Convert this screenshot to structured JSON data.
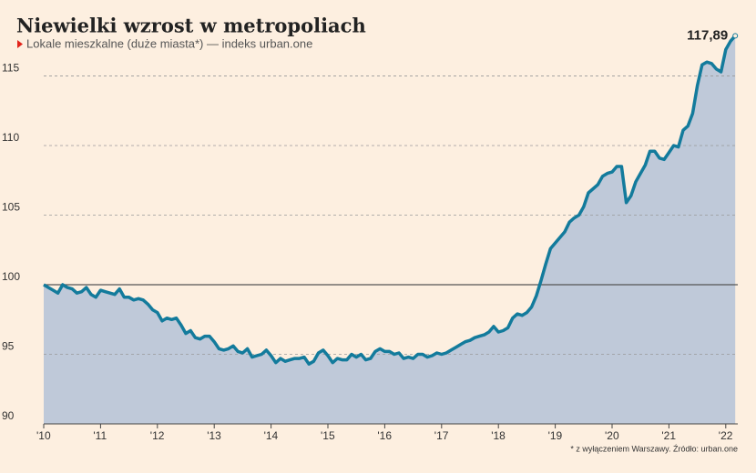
{
  "chart_data": {
    "type": "area",
    "title": "Niewielki wzrost w metropoliach",
    "subtitle": "Lokale mieszkalne (duże miasta*) — indeks urban.one",
    "note": "* z wyłączeniem Warszawy. Źródło: urban.one",
    "categories": [
      "'10",
      null,
      null,
      null,
      null,
      null,
      null,
      null,
      null,
      null,
      null,
      null,
      "'11",
      null,
      null,
      null,
      null,
      null,
      null,
      null,
      null,
      null,
      null,
      null,
      "'12",
      null,
      null,
      null,
      null,
      null,
      null,
      null,
      null,
      null,
      null,
      null,
      "'13",
      null,
      null,
      null,
      null,
      null,
      null,
      null,
      null,
      null,
      null,
      null,
      "'14",
      null,
      null,
      null,
      null,
      null,
      null,
      null,
      null,
      null,
      null,
      null,
      "'15",
      null,
      null,
      null,
      null,
      null,
      null,
      null,
      null,
      null,
      null,
      null,
      "'16",
      null,
      null,
      null,
      null,
      null,
      null,
      null,
      null,
      null,
      null,
      null,
      "'17",
      null,
      null,
      null,
      null,
      null,
      null,
      null,
      null,
      null,
      null,
      null,
      "'18",
      null,
      null,
      null,
      null,
      null,
      null,
      null,
      null,
      null,
      null,
      null,
      "'19",
      null,
      null,
      null,
      null,
      null,
      null,
      null,
      null,
      null,
      null,
      null,
      "'20",
      null,
      null,
      null,
      null,
      null,
      null,
      null,
      null,
      null,
      null,
      null,
      "'21",
      null,
      null,
      null,
      null,
      null,
      null,
      null,
      null,
      null,
      null,
      null,
      "'22",
      null,
      null
    ],
    "values": [
      100,
      99.8,
      99.6,
      99.4,
      100.0,
      99.8,
      99.7,
      99.4,
      99.5,
      99.8,
      99.3,
      99.1,
      99.6,
      99.5,
      99.4,
      99.3,
      99.7,
      99.1,
      99.1,
      98.9,
      99.0,
      98.9,
      98.6,
      98.2,
      98.0,
      97.4,
      97.6,
      97.5,
      97.6,
      97.1,
      96.5,
      96.7,
      96.2,
      96.1,
      96.3,
      96.3,
      95.9,
      95.4,
      95.3,
      95.4,
      95.6,
      95.2,
      95.1,
      95.4,
      94.8,
      94.9,
      95.0,
      95.3,
      94.9,
      94.4,
      94.7,
      94.5,
      94.6,
      94.7,
      94.7,
      94.8,
      94.3,
      94.5,
      95.1,
      95.3,
      94.9,
      94.4,
      94.7,
      94.6,
      94.6,
      95.0,
      94.8,
      95.0,
      94.6,
      94.7,
      95.2,
      95.4,
      95.2,
      95.2,
      95.0,
      95.1,
      94.7,
      94.8,
      94.7,
      95.0,
      95.0,
      94.8,
      94.9,
      95.1,
      95.0,
      95.1,
      95.3,
      95.5,
      95.7,
      95.9,
      96.0,
      96.2,
      96.3,
      96.4,
      96.6,
      97.0,
      96.6,
      96.7,
      96.9,
      97.6,
      97.9,
      97.8,
      98.0,
      98.4,
      99.2,
      100.3,
      101.5,
      102.6,
      103.0,
      103.4,
      103.8,
      104.5,
      104.8,
      105.0,
      105.6,
      106.6,
      106.9,
      107.2,
      107.8,
      108.0,
      108.1,
      108.5,
      108.5,
      105.9,
      106.4,
      107.4,
      108.0,
      108.6,
      109.6,
      109.6,
      109.1,
      109.0,
      109.5,
      110.0,
      109.9,
      111.1,
      111.4,
      112.3,
      114.3,
      115.8,
      116.0,
      115.9,
      115.5,
      115.3,
      116.9,
      117.5,
      117.89
    ],
    "value_labels": [
      null,
      null,
      null,
      null,
      null,
      null,
      null,
      null,
      null,
      null,
      null,
      null,
      null,
      null,
      null,
      null,
      null,
      null,
      null,
      null,
      null,
      null,
      null,
      null,
      null,
      null,
      null,
      null,
      null,
      null,
      null,
      null,
      null,
      null,
      null,
      null,
      null,
      null,
      null,
      null,
      null,
      null,
      null,
      null,
      null,
      null,
      null,
      null,
      null,
      null,
      null,
      null,
      null,
      null,
      null,
      null,
      null,
      null,
      null,
      null,
      null,
      null,
      null,
      null,
      null,
      null,
      null,
      null,
      null,
      null,
      null,
      null,
      null,
      null,
      null,
      null,
      null,
      null,
      null,
      null,
      null,
      null,
      null,
      null,
      null,
      null,
      null,
      null,
      null,
      null,
      null,
      null,
      null,
      null,
      null,
      null,
      null,
      null,
      null,
      null,
      null,
      null,
      null,
      null,
      null,
      null,
      null,
      null,
      null,
      null,
      null,
      null,
      null,
      null,
      null,
      null,
      null,
      null,
      null,
      null,
      null,
      null,
      null,
      null,
      null,
      null,
      null,
      null,
      null,
      null,
      null,
      null,
      null,
      null,
      null,
      null,
      null,
      null,
      null,
      null,
      null,
      null,
      null,
      null,
      null,
      null,
      "117,89"
    ],
    "color": "#137b9c",
    "fill": "#bfc9d9",
    "ylim": [
      90,
      118.5
    ],
    "yticks": [
      90,
      95,
      100,
      105,
      110,
      115
    ],
    "reference_line": 100,
    "grid": true
  }
}
